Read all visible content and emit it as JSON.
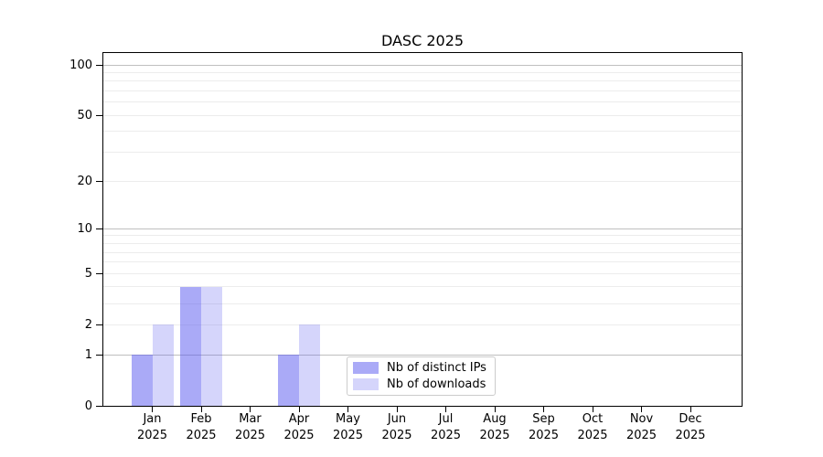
{
  "chart_data": {
    "type": "bar",
    "title": "DASC 2025",
    "categories": [
      "Jan",
      "Feb",
      "Mar",
      "Apr",
      "May",
      "Jun",
      "Jul",
      "Aug",
      "Sep",
      "Oct",
      "Nov",
      "Dec"
    ],
    "year_label": "2025",
    "series": [
      {
        "name": "Nb of distinct IPs",
        "color": "rgba(86,86,240,0.5)",
        "values": [
          1,
          4,
          0,
          1,
          0,
          0,
          0,
          0,
          0,
          0,
          0,
          0
        ]
      },
      {
        "name": "Nb of downloads",
        "color": "rgba(86,86,240,0.25)",
        "values": [
          2,
          4,
          0,
          2,
          0,
          0,
          0,
          0,
          0,
          0,
          0,
          0
        ]
      }
    ],
    "yscale": "log10(value+1)",
    "ylim": [
      0,
      118
    ],
    "ytick_values": [
      100,
      50,
      20,
      10,
      5,
      2,
      1,
      0
    ],
    "major_gridline_values": [
      1,
      10,
      100
    ],
    "minor_gridline_values": [
      2,
      3,
      4,
      5,
      6,
      7,
      8,
      9,
      20,
      30,
      40,
      50,
      60,
      70,
      80,
      90
    ],
    "grid": "horizontal",
    "legend": {
      "position": "lower-center-inside"
    },
    "colors": {
      "major_grid": "#bfbfbf",
      "minor_grid": "#ececec",
      "axis": "#000000",
      "background": "#ffffff",
      "text": "#000000"
    }
  }
}
